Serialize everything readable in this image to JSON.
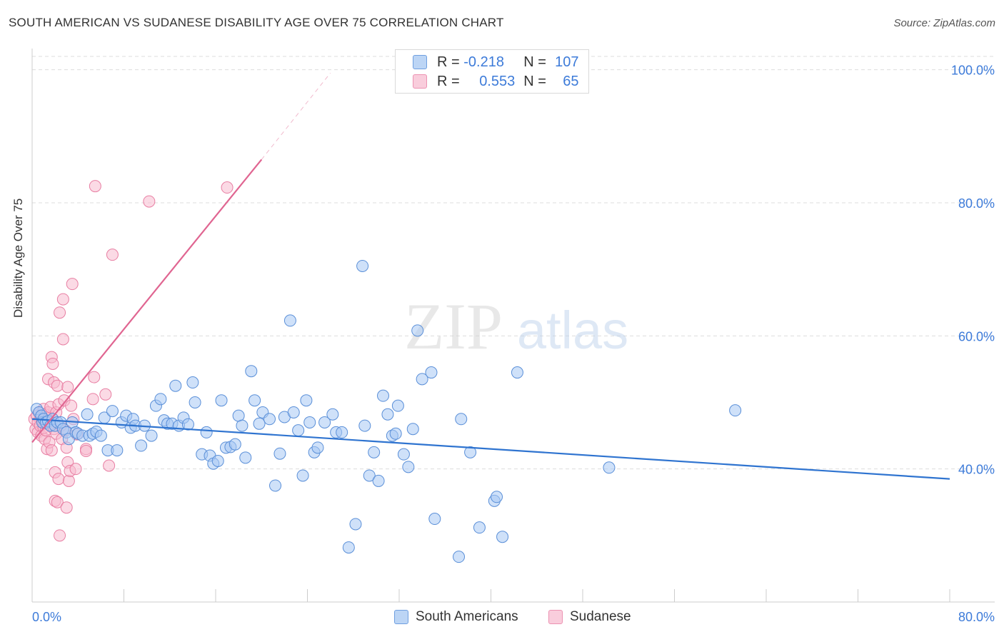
{
  "title": "SOUTH AMERICAN VS SUDANESE DISABILITY AGE OVER 75 CORRELATION CHART",
  "source": "Source: ZipAtlas.com",
  "watermark": {
    "zip": "ZIP",
    "atlas": "atlas"
  },
  "legend_top": {
    "rows": [
      {
        "r_label": "R =",
        "r_value": "-0.218",
        "n_label": "N =",
        "n_value": "107",
        "color": "#7aaef0"
      },
      {
        "r_label": "R =",
        "r_value": "0.553",
        "n_label": "N =",
        "n_value": "65",
        "color": "#f08fb0"
      }
    ]
  },
  "colors": {
    "blue_fill": "#a8c8f4",
    "blue_stroke": "#5a8fd8",
    "blue_line": "#2f74d0",
    "pink_fill": "#f7bccf",
    "pink_stroke": "#e87fa3",
    "pink_line": "#e06591",
    "axis_text": "#3d7bd9",
    "grid": "#dddddd"
  },
  "chart_data": {
    "type": "scatter",
    "title": "SOUTH AMERICAN VS SUDANESE DISABILITY AGE OVER 75 CORRELATION CHART",
    "xlabel": "",
    "ylabel": "Disability Age Over 75",
    "xlim": [
      0,
      80
    ],
    "ylim": [
      20,
      102
    ],
    "x_tick_labels": [
      "0.0%",
      "80.0%"
    ],
    "y_ticks": [
      40,
      60,
      80,
      100
    ],
    "y_tick_labels": [
      "40.0%",
      "60.0%",
      "80.0%",
      "100.0%"
    ],
    "grid": true,
    "legend_position": "bottom-center",
    "series": [
      {
        "name": "South Americans",
        "r": -0.218,
        "n": 107,
        "trend": {
          "x": [
            0,
            80
          ],
          "y": [
            47.5,
            38.5
          ]
        },
        "points": [
          [
            0.4,
            49
          ],
          [
            0.6,
            48.5
          ],
          [
            0.8,
            48
          ],
          [
            0.9,
            47
          ],
          [
            1.0,
            47.5
          ],
          [
            1.2,
            47
          ],
          [
            1.4,
            47.2
          ],
          [
            1.6,
            46.5
          ],
          [
            1.8,
            47.5
          ],
          [
            2.0,
            46.5
          ],
          [
            2.2,
            47
          ],
          [
            2.5,
            47
          ],
          [
            2.7,
            46
          ],
          [
            3.0,
            45.5
          ],
          [
            3.2,
            44.5
          ],
          [
            3.5,
            47
          ],
          [
            3.8,
            45.5
          ],
          [
            4.0,
            45.3
          ],
          [
            4.4,
            45
          ],
          [
            4.8,
            48.2
          ],
          [
            5.0,
            45
          ],
          [
            5.3,
            45.3
          ],
          [
            5.6,
            45.6
          ],
          [
            6.0,
            45
          ],
          [
            6.3,
            47.7
          ],
          [
            6.6,
            42.8
          ],
          [
            7.0,
            48.7
          ],
          [
            7.4,
            42.8
          ],
          [
            7.8,
            47
          ],
          [
            8.2,
            48
          ],
          [
            8.6,
            46.2
          ],
          [
            8.8,
            47.5
          ],
          [
            9.0,
            46.5
          ],
          [
            9.5,
            43.5
          ],
          [
            9.8,
            46.5
          ],
          [
            10.4,
            45
          ],
          [
            10.8,
            49.5
          ],
          [
            11.2,
            50.5
          ],
          [
            11.5,
            47.3
          ],
          [
            11.8,
            46.8
          ],
          [
            12.2,
            46.8
          ],
          [
            12.5,
            52.5
          ],
          [
            12.8,
            46.5
          ],
          [
            13.2,
            47.7
          ],
          [
            13.6,
            46.7
          ],
          [
            14.0,
            53
          ],
          [
            14.2,
            50
          ],
          [
            14.8,
            42.2
          ],
          [
            15.2,
            45.5
          ],
          [
            15.5,
            42
          ],
          [
            15.8,
            40.8
          ],
          [
            16.2,
            41.2
          ],
          [
            16.5,
            50.3
          ],
          [
            16.9,
            43.2
          ],
          [
            17.3,
            43.3
          ],
          [
            17.7,
            43.7
          ],
          [
            18.0,
            48
          ],
          [
            18.3,
            46.5
          ],
          [
            18.6,
            41.7
          ],
          [
            19.1,
            54.7
          ],
          [
            19.4,
            50.3
          ],
          [
            19.8,
            46.8
          ],
          [
            20.1,
            48.5
          ],
          [
            20.7,
            47.5
          ],
          [
            21.2,
            37.5
          ],
          [
            21.6,
            42.3
          ],
          [
            22.0,
            47.8
          ],
          [
            22.5,
            62.3
          ],
          [
            22.8,
            48.5
          ],
          [
            23.2,
            45.8
          ],
          [
            23.6,
            39
          ],
          [
            23.9,
            50.3
          ],
          [
            24.2,
            47
          ],
          [
            24.6,
            42.5
          ],
          [
            24.9,
            43.2
          ],
          [
            25.5,
            47
          ],
          [
            26.2,
            48.2
          ],
          [
            26.5,
            45.5
          ],
          [
            27.0,
            45.5
          ],
          [
            27.6,
            28.2
          ],
          [
            28.2,
            31.7
          ],
          [
            28.8,
            70.5
          ],
          [
            29.0,
            46.5
          ],
          [
            29.4,
            39
          ],
          [
            29.8,
            42.5
          ],
          [
            30.2,
            38.2
          ],
          [
            30.6,
            51
          ],
          [
            31.0,
            48.2
          ],
          [
            31.4,
            45
          ],
          [
            31.7,
            45.3
          ],
          [
            31.9,
            49.5
          ],
          [
            32.4,
            42.2
          ],
          [
            32.8,
            40.3
          ],
          [
            33.2,
            46
          ],
          [
            33.6,
            60.8
          ],
          [
            34.0,
            53.5
          ],
          [
            34.8,
            54.5
          ],
          [
            35.1,
            32.5
          ],
          [
            37.2,
            26.8
          ],
          [
            37.4,
            47.5
          ],
          [
            38.2,
            42.5
          ],
          [
            39.0,
            31.2
          ],
          [
            40.3,
            35.2
          ],
          [
            40.5,
            35.8
          ],
          [
            41.0,
            29.8
          ],
          [
            42.3,
            54.5
          ],
          [
            50.3,
            40.2
          ],
          [
            61.3,
            48.8
          ]
        ]
      },
      {
        "name": "Sudanese",
        "r": 0.553,
        "n": 65,
        "trend": {
          "x": [
            0,
            20
          ],
          "y": [
            44,
            86.5
          ]
        },
        "trend_dashed": {
          "x": [
            20,
            26
          ],
          "y": [
            86.5,
            99.5
          ]
        },
        "points": [
          [
            0.2,
            47.5
          ],
          [
            0.3,
            46
          ],
          [
            0.4,
            48
          ],
          [
            0.5,
            47
          ],
          [
            0.5,
            45.5
          ],
          [
            0.6,
            48.5
          ],
          [
            0.7,
            46.5
          ],
          [
            0.8,
            47.8
          ],
          [
            0.8,
            45
          ],
          [
            0.9,
            47.2
          ],
          [
            1.0,
            49
          ],
          [
            1.0,
            46.2
          ],
          [
            1.1,
            48.2
          ],
          [
            1.1,
            44.5
          ],
          [
            1.2,
            47.7
          ],
          [
            1.2,
            45.8
          ],
          [
            1.3,
            46.8
          ],
          [
            1.3,
            43
          ],
          [
            1.4,
            48.5
          ],
          [
            1.4,
            53.5
          ],
          [
            1.5,
            47
          ],
          [
            1.5,
            44
          ],
          [
            1.6,
            49.3
          ],
          [
            1.6,
            46.5
          ],
          [
            1.7,
            56.8
          ],
          [
            1.7,
            42.8
          ],
          [
            1.8,
            55.8
          ],
          [
            1.8,
            47.5
          ],
          [
            1.9,
            53
          ],
          [
            1.9,
            46
          ],
          [
            2.0,
            39.5
          ],
          [
            2.0,
            35.2
          ],
          [
            2.1,
            48.5
          ],
          [
            2.1,
            45.3
          ],
          [
            2.2,
            52.5
          ],
          [
            2.2,
            35
          ],
          [
            2.3,
            38.5
          ],
          [
            2.3,
            49.7
          ],
          [
            2.4,
            63.5
          ],
          [
            2.4,
            30
          ],
          [
            2.5,
            46.5
          ],
          [
            2.6,
            44.5
          ],
          [
            2.7,
            65.5
          ],
          [
            2.7,
            59.5
          ],
          [
            2.8,
            50.3
          ],
          [
            2.9,
            45.8
          ],
          [
            3.0,
            43.2
          ],
          [
            3.0,
            34.2
          ],
          [
            3.1,
            41
          ],
          [
            3.1,
            52.3
          ],
          [
            3.2,
            38.2
          ],
          [
            3.3,
            39.7
          ],
          [
            3.4,
            49.5
          ],
          [
            3.5,
            67.8
          ],
          [
            3.6,
            47.5
          ],
          [
            3.8,
            40
          ],
          [
            3.9,
            45.2
          ],
          [
            4.7,
            43
          ],
          [
            4.7,
            42.7
          ],
          [
            5.3,
            50.5
          ],
          [
            5.4,
            53.8
          ],
          [
            5.5,
            82.5
          ],
          [
            6.4,
            51.2
          ],
          [
            6.7,
            40.5
          ],
          [
            7.0,
            72.2
          ],
          [
            10.2,
            80.2
          ],
          [
            17.0,
            82.3
          ]
        ]
      }
    ]
  }
}
